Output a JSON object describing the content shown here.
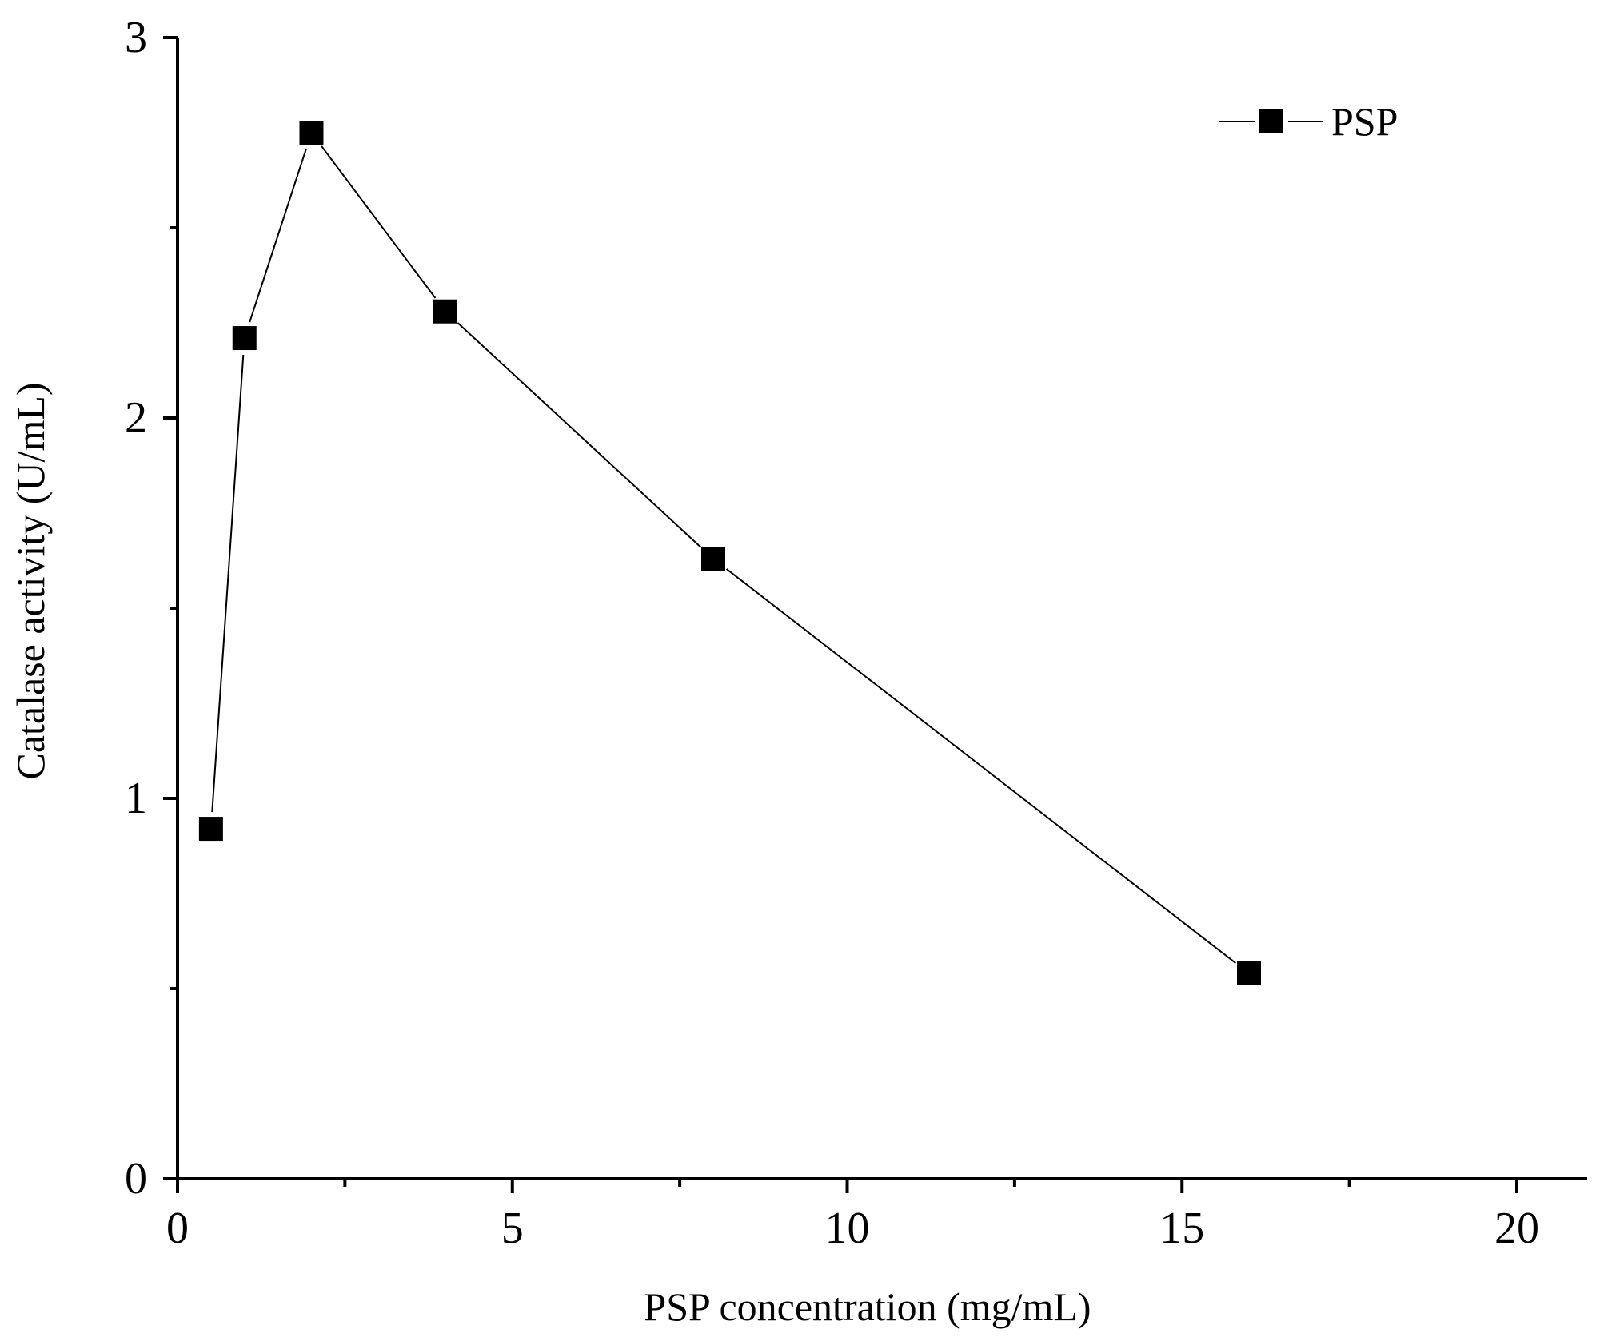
{
  "chart_data": {
    "type": "line",
    "title": "",
    "xlabel": "PSP concentration (mg/mL)",
    "ylabel": "Catalase activity (U/mL)",
    "xlim": [
      0,
      21
    ],
    "ylim": [
      0,
      3
    ],
    "x_major_ticks": [
      0,
      5,
      10,
      15,
      20
    ],
    "x_minor_ticks": [
      2.5,
      7.5,
      12.5,
      17.5
    ],
    "y_major_ticks": [
      0,
      1,
      2,
      3
    ],
    "y_minor_ticks": [
      0.5,
      1.5,
      2.5
    ],
    "x_tick_labels": [
      "0",
      "5",
      "10",
      "15",
      "20"
    ],
    "y_tick_labels": [
      "0",
      "1",
      "2",
      "3"
    ],
    "grid": false,
    "legend_position": "top-right",
    "series": [
      {
        "name": "PSP",
        "color": "#000000",
        "marker": "square",
        "x": [
          0.5,
          1,
          2,
          4,
          8,
          16
        ],
        "y": [
          0.92,
          2.21,
          2.75,
          2.28,
          1.63,
          0.54
        ]
      }
    ]
  }
}
